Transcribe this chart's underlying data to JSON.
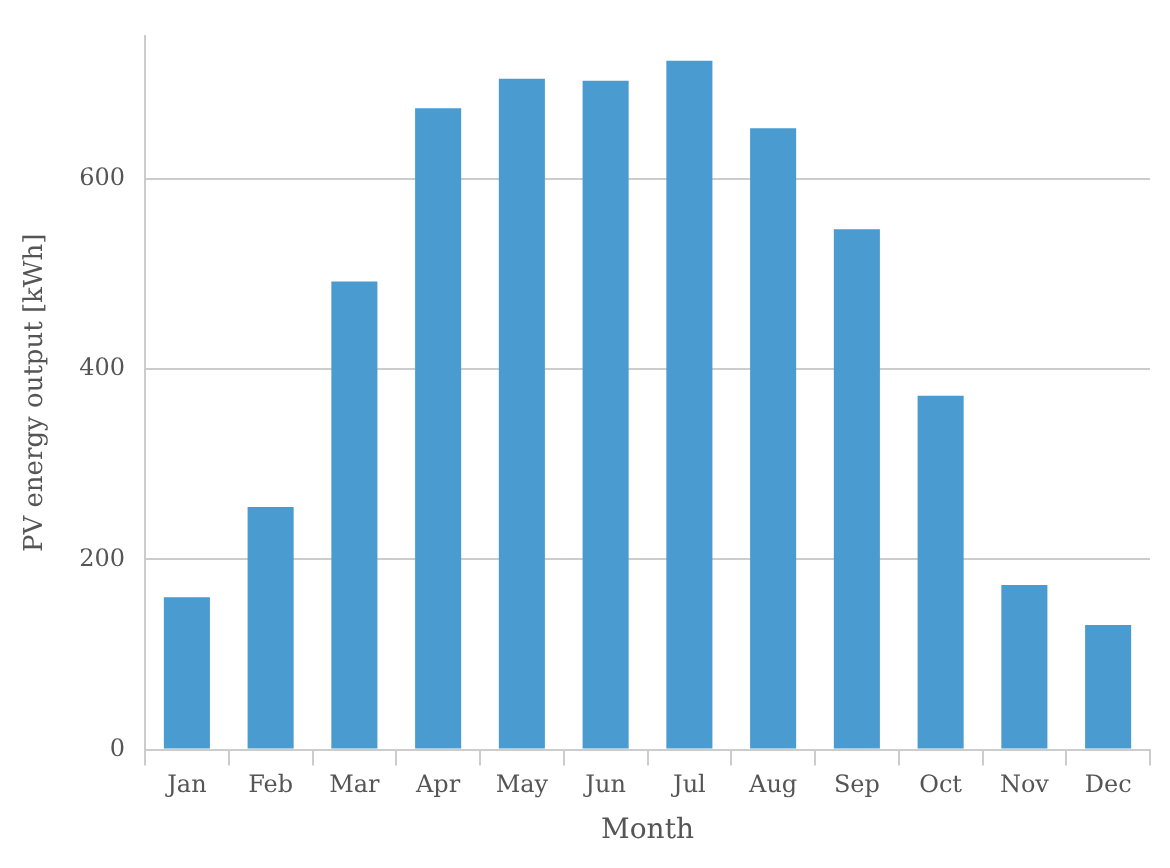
{
  "chart_data": {
    "type": "bar",
    "xlabel": "Month",
    "ylabel": "PV energy output [kWh]",
    "categories": [
      "Jan",
      "Feb",
      "Mar",
      "Apr",
      "May",
      "Jun",
      "Jul",
      "Aug",
      "Sep",
      "Oct",
      "Nov",
      "Dec"
    ],
    "values": [
      160,
      255,
      492,
      674,
      705,
      703,
      724,
      653,
      547,
      372,
      173,
      131
    ],
    "color": "#4a9bd0",
    "ylim": [
      0,
      750
    ],
    "yticks": [
      0,
      200,
      400,
      600
    ],
    "grid": "y"
  }
}
